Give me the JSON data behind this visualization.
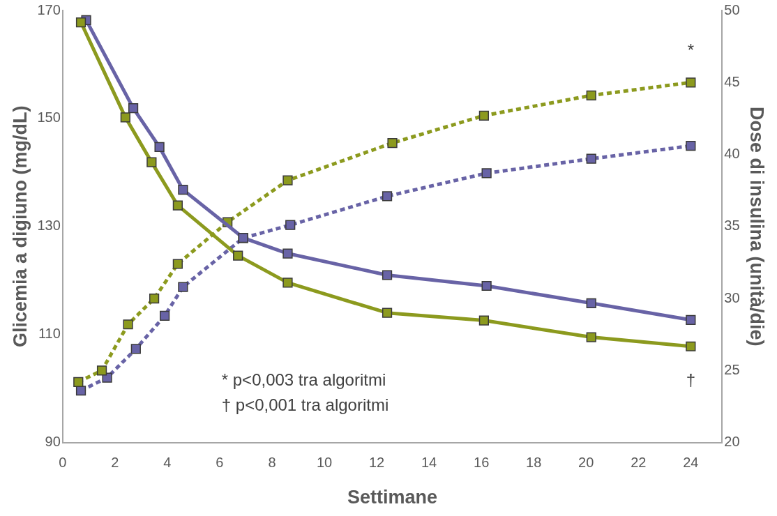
{
  "chart_data": {
    "type": "line",
    "xlabel": "Settimane",
    "ylabel": "Glicemia a digiuno (mg/dL)",
    "y2label": "Dose di insulina (unità/die)",
    "xlim": [
      0,
      25.2
    ],
    "xticks": [
      0,
      2,
      4,
      6,
      8,
      10,
      12,
      14,
      16,
      18,
      20,
      22,
      24
    ],
    "ylim": [
      90,
      170
    ],
    "yticks": [
      90,
      110,
      130,
      150,
      170
    ],
    "y2lim": [
      20,
      50
    ],
    "y2ticks": [
      20,
      25,
      30,
      35,
      40,
      45,
      50
    ],
    "grid": false,
    "legend": false,
    "marker": "square",
    "series": [
      {
        "color": "#8c9a1e",
        "line_style": "solid",
        "x": [
          0.7,
          2.4,
          3.4,
          4.4,
          6.7,
          8.6,
          12.4,
          16.1,
          20.2,
          24.0
        ],
        "values": [
          167.8,
          150.2,
          141.9,
          133.9,
          124.6,
          119.6,
          114.0,
          112.6,
          109.5,
          107.8
        ]
      },
      {
        "color": "#6863a6",
        "line_style": "solid",
        "x": [
          0.9,
          2.7,
          3.7,
          4.6,
          6.9,
          8.6,
          12.4,
          16.2,
          20.2,
          24.0
        ],
        "values": [
          168.2,
          151.9,
          144.7,
          136.8,
          127.9,
          125.0,
          121.0,
          119.0,
          115.8,
          112.7
        ]
      },
      {
        "color": "#8c9a1e",
        "line_style": "dotted",
        "axis": "y2",
        "x": [
          0.6,
          1.5,
          2.5,
          3.5,
          4.4,
          6.3,
          8.6,
          12.6,
          16.1,
          20.2,
          24.0
        ],
        "values": [
          24.2,
          25.0,
          28.2,
          30.0,
          32.4,
          35.3,
          38.2,
          40.8,
          42.7,
          44.1,
          45.0
        ]
      },
      {
        "color": "#6863a6",
        "line_style": "dotted",
        "axis": "y2",
        "x": [
          0.7,
          1.7,
          2.8,
          3.9,
          4.6,
          6.9,
          8.7,
          12.4,
          16.2,
          20.2,
          24.0
        ],
        "values": [
          23.6,
          24.5,
          26.5,
          28.8,
          30.8,
          34.2,
          35.1,
          37.1,
          38.7,
          39.7,
          40.6
        ]
      }
    ],
    "annotations": [
      "*",
      "†",
      "* p<0,003 tra algoritmi",
      "† p<0,001 tra algoritmi"
    ]
  }
}
